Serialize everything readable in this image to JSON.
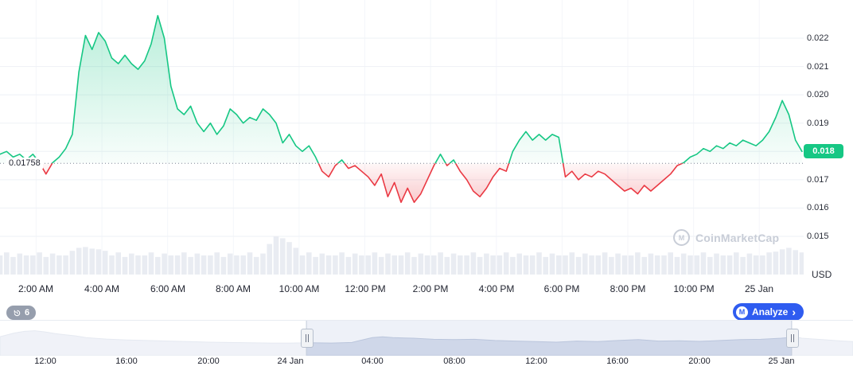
{
  "chart": {
    "baseline_label": "0.01758",
    "current_price_label": "0.018",
    "axis_unit": "USD"
  },
  "watermark": {
    "text": "CoinMarketCap",
    "logo_letter": "M"
  },
  "history_badge": {
    "count": "6",
    "icon": "history-clock"
  },
  "analyze_button": {
    "label": "Analyze",
    "chevron": "›",
    "logo_letter": "M"
  },
  "chart_data": {
    "type": "area",
    "title": "",
    "baseline": 0.01758,
    "current_price": 0.018,
    "unit": "USD",
    "colors": {
      "up": "#16C784",
      "down": "#EA3943",
      "accent_blue": "#2f5cf0",
      "volume": "#e9ecf2"
    },
    "xlim": [
      0.9,
      25.35
    ],
    "ylim": [
      0.01365,
      0.02335
    ],
    "x_unit": "hours since 24 Jan 00:00",
    "x_hours_start": 0.9,
    "x_hours_step": 0.2,
    "prices": [
      0.0179,
      0.018,
      0.0178,
      0.0179,
      0.0177,
      0.0179,
      0.0176,
      0.0172,
      0.0176,
      0.0178,
      0.0181,
      0.0186,
      0.0208,
      0.0221,
      0.0216,
      0.0222,
      0.0219,
      0.0213,
      0.0211,
      0.0214,
      0.0211,
      0.0209,
      0.0212,
      0.0218,
      0.0228,
      0.022,
      0.0203,
      0.0195,
      0.0193,
      0.0196,
      0.019,
      0.0187,
      0.019,
      0.0186,
      0.0189,
      0.0195,
      0.0193,
      0.019,
      0.0192,
      0.0191,
      0.0195,
      0.0193,
      0.019,
      0.0183,
      0.0186,
      0.0182,
      0.018,
      0.0182,
      0.0178,
      0.0173,
      0.0171,
      0.0175,
      0.0177,
      0.0174,
      0.0175,
      0.0173,
      0.0171,
      0.0168,
      0.0172,
      0.0164,
      0.0169,
      0.0162,
      0.0167,
      0.0162,
      0.0165,
      0.017,
      0.0175,
      0.0179,
      0.0175,
      0.0177,
      0.0173,
      0.017,
      0.0166,
      0.0164,
      0.0167,
      0.0171,
      0.0174,
      0.0173,
      0.018,
      0.0184,
      0.0187,
      0.0184,
      0.0186,
      0.0184,
      0.0186,
      0.0185,
      0.0171,
      0.0173,
      0.017,
      0.0172,
      0.0171,
      0.0173,
      0.0172,
      0.017,
      0.0168,
      0.0166,
      0.0167,
      0.0165,
      0.0168,
      0.0166,
      0.0168,
      0.017,
      0.0172,
      0.0175,
      0.0176,
      0.0178,
      0.0179,
      0.0181,
      0.018,
      0.0182,
      0.0181,
      0.0183,
      0.0182,
      0.0184,
      0.0183,
      0.0182,
      0.0184,
      0.0187,
      0.0192,
      0.0198,
      0.0193,
      0.0184,
      0.018
    ],
    "volume_rel": [
      0.5,
      0.58,
      0.46,
      0.55,
      0.5,
      0.5,
      0.58,
      0.46,
      0.55,
      0.5,
      0.5,
      0.62,
      0.7,
      0.72,
      0.68,
      0.66,
      0.62,
      0.5,
      0.58,
      0.46,
      0.55,
      0.5,
      0.5,
      0.58,
      0.46,
      0.55,
      0.5,
      0.5,
      0.58,
      0.46,
      0.55,
      0.5,
      0.5,
      0.58,
      0.46,
      0.55,
      0.5,
      0.5,
      0.58,
      0.46,
      0.55,
      0.8,
      1.0,
      0.95,
      0.85,
      0.7,
      0.5,
      0.58,
      0.46,
      0.55,
      0.5,
      0.5,
      0.58,
      0.46,
      0.55,
      0.5,
      0.5,
      0.58,
      0.46,
      0.55,
      0.5,
      0.5,
      0.58,
      0.46,
      0.55,
      0.5,
      0.5,
      0.58,
      0.46,
      0.55,
      0.5,
      0.5,
      0.58,
      0.46,
      0.55,
      0.5,
      0.5,
      0.58,
      0.46,
      0.55,
      0.5,
      0.5,
      0.58,
      0.46,
      0.55,
      0.5,
      0.5,
      0.58,
      0.46,
      0.55,
      0.5,
      0.5,
      0.58,
      0.46,
      0.55,
      0.5,
      0.5,
      0.58,
      0.46,
      0.55,
      0.5,
      0.5,
      0.58,
      0.46,
      0.55,
      0.5,
      0.5,
      0.58,
      0.46,
      0.55,
      0.5,
      0.5,
      0.58,
      0.46,
      0.55,
      0.5,
      0.5,
      0.58,
      0.6,
      0.66,
      0.7,
      0.64,
      0.58
    ],
    "y_ticks": [
      {
        "value": 0.022,
        "label": "0.022"
      },
      {
        "value": 0.021,
        "label": "0.021"
      },
      {
        "value": 0.02,
        "label": "0.020"
      },
      {
        "value": 0.019,
        "label": "0.019"
      },
      {
        "value": 0.018,
        "label": "0.018"
      },
      {
        "value": 0.017,
        "label": "0.017"
      },
      {
        "value": 0.016,
        "label": "0.016"
      },
      {
        "value": 0.015,
        "label": "0.015"
      }
    ],
    "x_ticks": [
      {
        "t": 2,
        "label": "2:00 AM"
      },
      {
        "t": 4,
        "label": "4:00 AM"
      },
      {
        "t": 6,
        "label": "6:00 AM"
      },
      {
        "t": 8,
        "label": "8:00 AM"
      },
      {
        "t": 10,
        "label": "10:00 AM"
      },
      {
        "t": 12,
        "label": "12:00 PM"
      },
      {
        "t": 14,
        "label": "2:00 PM"
      },
      {
        "t": 16,
        "label": "4:00 PM"
      },
      {
        "t": 18,
        "label": "6:00 PM"
      },
      {
        "t": 20,
        "label": "8:00 PM"
      },
      {
        "t": 22,
        "label": "10:00 PM"
      },
      {
        "t": 24,
        "label": "25 Jan"
      }
    ],
    "navigator": {
      "xlim": [
        -14.2,
        27.5
      ],
      "selection_t": [
        0.78,
        24.5
      ],
      "x": [
        -14.2,
        -13.5,
        -13,
        -12.5,
        -12,
        -11.5,
        -11,
        -10.5,
        -10,
        -9,
        -8,
        -7,
        -6,
        -5,
        -4,
        -3,
        -2,
        -1,
        0,
        1,
        2,
        3,
        3.5,
        4,
        4.5,
        5,
        6,
        7,
        8,
        9,
        10,
        11,
        12,
        13,
        14,
        15,
        16,
        17,
        18,
        19,
        20,
        21,
        22,
        23,
        24,
        24.7,
        25,
        26,
        27,
        27.5
      ],
      "v": [
        0.55,
        0.68,
        0.74,
        0.76,
        0.72,
        0.66,
        0.62,
        0.58,
        0.52,
        0.47,
        0.44,
        0.42,
        0.4,
        0.38,
        0.36,
        0.35,
        0.34,
        0.33,
        0.33,
        0.34,
        0.33,
        0.35,
        0.44,
        0.52,
        0.55,
        0.52,
        0.5,
        0.46,
        0.45,
        0.46,
        0.42,
        0.4,
        0.38,
        0.36,
        0.4,
        0.38,
        0.42,
        0.45,
        0.4,
        0.41,
        0.39,
        0.42,
        0.45,
        0.46,
        0.5,
        0.55,
        0.5,
        0.45,
        0.4,
        0.38
      ],
      "x_ticks": [
        {
          "t": -12,
          "label": "12:00"
        },
        {
          "t": -8,
          "label": "16:00"
        },
        {
          "t": -4,
          "label": "20:00"
        },
        {
          "t": 0,
          "label": "24 Jan"
        },
        {
          "t": 4,
          "label": "04:00"
        },
        {
          "t": 8,
          "label": "08:00"
        },
        {
          "t": 12,
          "label": "12:00"
        },
        {
          "t": 16,
          "label": "16:00"
        },
        {
          "t": 20,
          "label": "20:00"
        },
        {
          "t": 24,
          "label": "25 Jan"
        }
      ]
    }
  }
}
